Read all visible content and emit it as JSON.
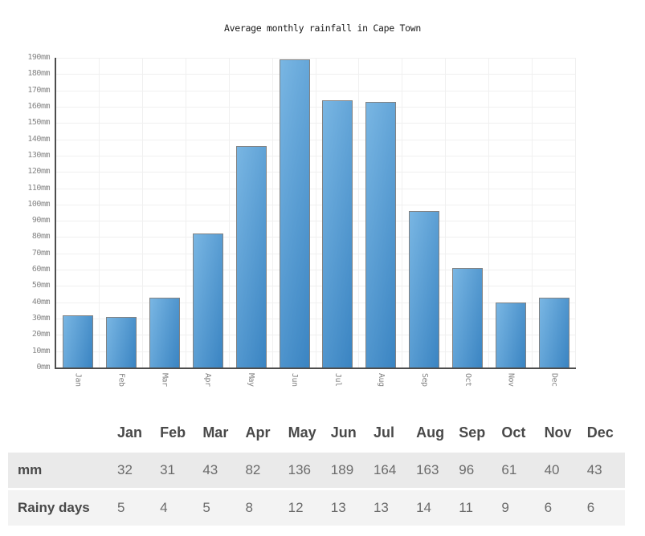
{
  "chart_data": {
    "type": "bar",
    "title": "Average monthly rainfall in Cape Town",
    "categories": [
      "Jan",
      "Feb",
      "Mar",
      "Apr",
      "May",
      "Jun",
      "Jul",
      "Aug",
      "Sep",
      "Oct",
      "Nov",
      "Dec"
    ],
    "values": [
      32,
      31,
      43,
      82,
      136,
      189,
      164,
      163,
      96,
      61,
      40,
      43
    ],
    "unit": "mm",
    "ylabel": "",
    "xlabel": "",
    "ylim": [
      0,
      190
    ],
    "ytick_step": 10,
    "grid": true,
    "legend": "none",
    "colors": {
      "bar_light": "#79b6e3",
      "bar_dark": "#3a84c2",
      "bar_border": "#828282",
      "axis": "#4d4d4d",
      "grid": "#f0f0f0",
      "axis_label": "#858585",
      "title": "#1a1a1a"
    }
  },
  "table": {
    "columns": [
      "Jan",
      "Feb",
      "Mar",
      "Apr",
      "May",
      "Jun",
      "Jul",
      "Aug",
      "Sep",
      "Oct",
      "Nov",
      "Dec"
    ],
    "rows": [
      {
        "label": "mm",
        "values": [
          32,
          31,
          43,
          82,
          136,
          189,
          164,
          163,
          96,
          61,
          40,
          43
        ]
      },
      {
        "label": "Rainy days",
        "values": [
          5,
          4,
          5,
          8,
          12,
          13,
          13,
          14,
          11,
          9,
          6,
          6
        ]
      }
    ]
  }
}
